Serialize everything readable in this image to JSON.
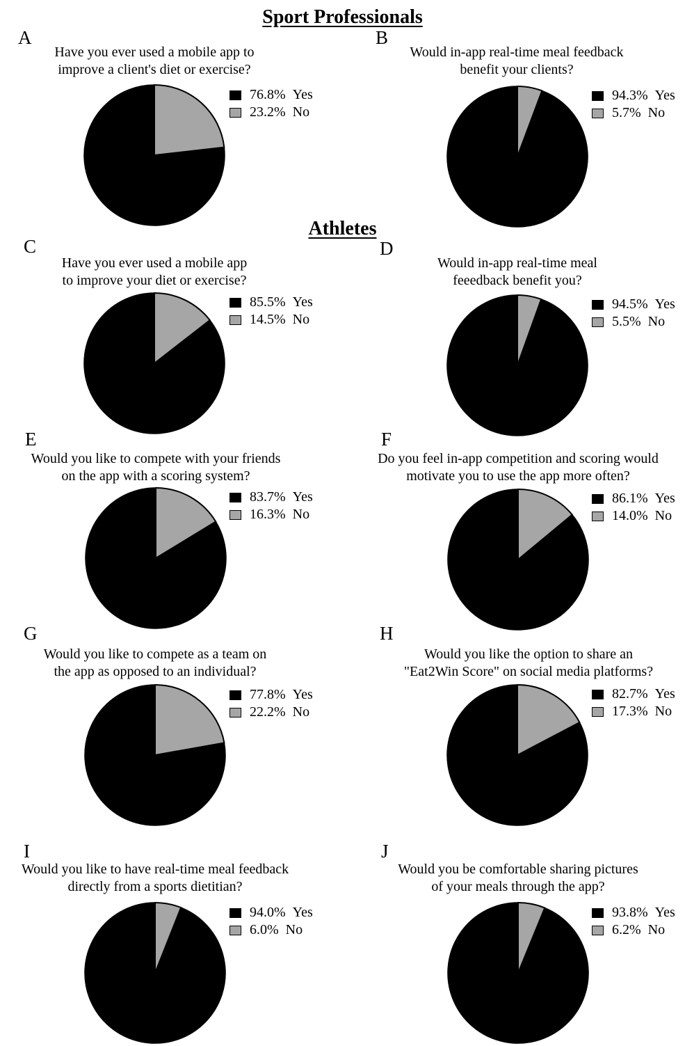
{
  "headings": {
    "sport_professionals": "Sport Professionals",
    "athletes": "Athletes"
  },
  "colors": {
    "yes": "#000000",
    "no": "#a6a6a6",
    "outline": "#000000"
  },
  "chart_data": [
    {
      "type": "pie",
      "panel": "A",
      "group": "Sport Professionals",
      "title_lines": [
        "Have you ever used a mobile app to",
        "improve a client's diet or exercise?"
      ],
      "slices": [
        {
          "label": "Yes",
          "pct_text": "76.8%",
          "value": 76.8
        },
        {
          "label": "No",
          "pct_text": "23.2%",
          "value": 23.2
        }
      ]
    },
    {
      "type": "pie",
      "panel": "B",
      "group": "Sport Professionals",
      "title_lines": [
        "Would in-app real-time meal feedback",
        "benefit your clients?"
      ],
      "slices": [
        {
          "label": "Yes",
          "pct_text": "94.3%",
          "value": 94.3
        },
        {
          "label": "No",
          "pct_text": "5.7%",
          "value": 5.7
        }
      ]
    },
    {
      "type": "pie",
      "panel": "C",
      "group": "Athletes",
      "title_lines": [
        "Have you ever used a mobile app",
        "to improve your diet or exercise?"
      ],
      "slices": [
        {
          "label": "Yes",
          "pct_text": "85.5%",
          "value": 85.5
        },
        {
          "label": "No",
          "pct_text": "14.5%",
          "value": 14.5
        }
      ]
    },
    {
      "type": "pie",
      "panel": "D",
      "group": "Athletes",
      "title_lines": [
        "Would in-app real-time meal",
        "feeedback benefit you?"
      ],
      "slices": [
        {
          "label": "Yes",
          "pct_text": "94.5%",
          "value": 94.5
        },
        {
          "label": "No",
          "pct_text": "5.5%",
          "value": 5.5
        }
      ]
    },
    {
      "type": "pie",
      "panel": "E",
      "group": "Athletes",
      "title_lines": [
        "Would you like to compete with your friends",
        "on the app with a scoring system?"
      ],
      "slices": [
        {
          "label": "Yes",
          "pct_text": "83.7%",
          "value": 83.7
        },
        {
          "label": "No",
          "pct_text": "16.3%",
          "value": 16.3
        }
      ]
    },
    {
      "type": "pie",
      "panel": "F",
      "group": "Athletes",
      "title_lines": [
        "Do you feel in-app competition and scoring would",
        "motivate you to use the app more often?"
      ],
      "slices": [
        {
          "label": "Yes",
          "pct_text": "86.1%",
          "value": 86.1
        },
        {
          "label": "No",
          "pct_text": "14.0%",
          "value": 14.0
        }
      ]
    },
    {
      "type": "pie",
      "panel": "G",
      "group": "Athletes",
      "title_lines": [
        "Would you like to compete as a team on",
        "the app as opposed to an individual?"
      ],
      "slices": [
        {
          "label": "Yes",
          "pct_text": "77.8%",
          "value": 77.8
        },
        {
          "label": "No",
          "pct_text": "22.2%",
          "value": 22.2
        }
      ]
    },
    {
      "type": "pie",
      "panel": "H",
      "group": "Athletes",
      "title_lines": [
        "Would you like the option to share an",
        "\"Eat2Win Score\" on social media platforms?"
      ],
      "slices": [
        {
          "label": "Yes",
          "pct_text": "82.7%",
          "value": 82.7
        },
        {
          "label": "No",
          "pct_text": "17.3%",
          "value": 17.3
        }
      ]
    },
    {
      "type": "pie",
      "panel": "I",
      "group": "Athletes",
      "title_lines": [
        "Would you like to have real-time meal feedback",
        "directly from a sports dietitian?"
      ],
      "slices": [
        {
          "label": "Yes",
          "pct_text": "94.0%",
          "value": 94.0
        },
        {
          "label": "No",
          "pct_text": "6.0%",
          "value": 6.0
        }
      ]
    },
    {
      "type": "pie",
      "panel": "J",
      "group": "Athletes",
      "title_lines": [
        "Would you be comfortable sharing pictures",
        "of your meals through the app?"
      ],
      "slices": [
        {
          "label": "Yes",
          "pct_text": "93.8%",
          "value": 93.8
        },
        {
          "label": "No",
          "pct_text": "6.2%",
          "value": 6.2
        }
      ]
    }
  ]
}
